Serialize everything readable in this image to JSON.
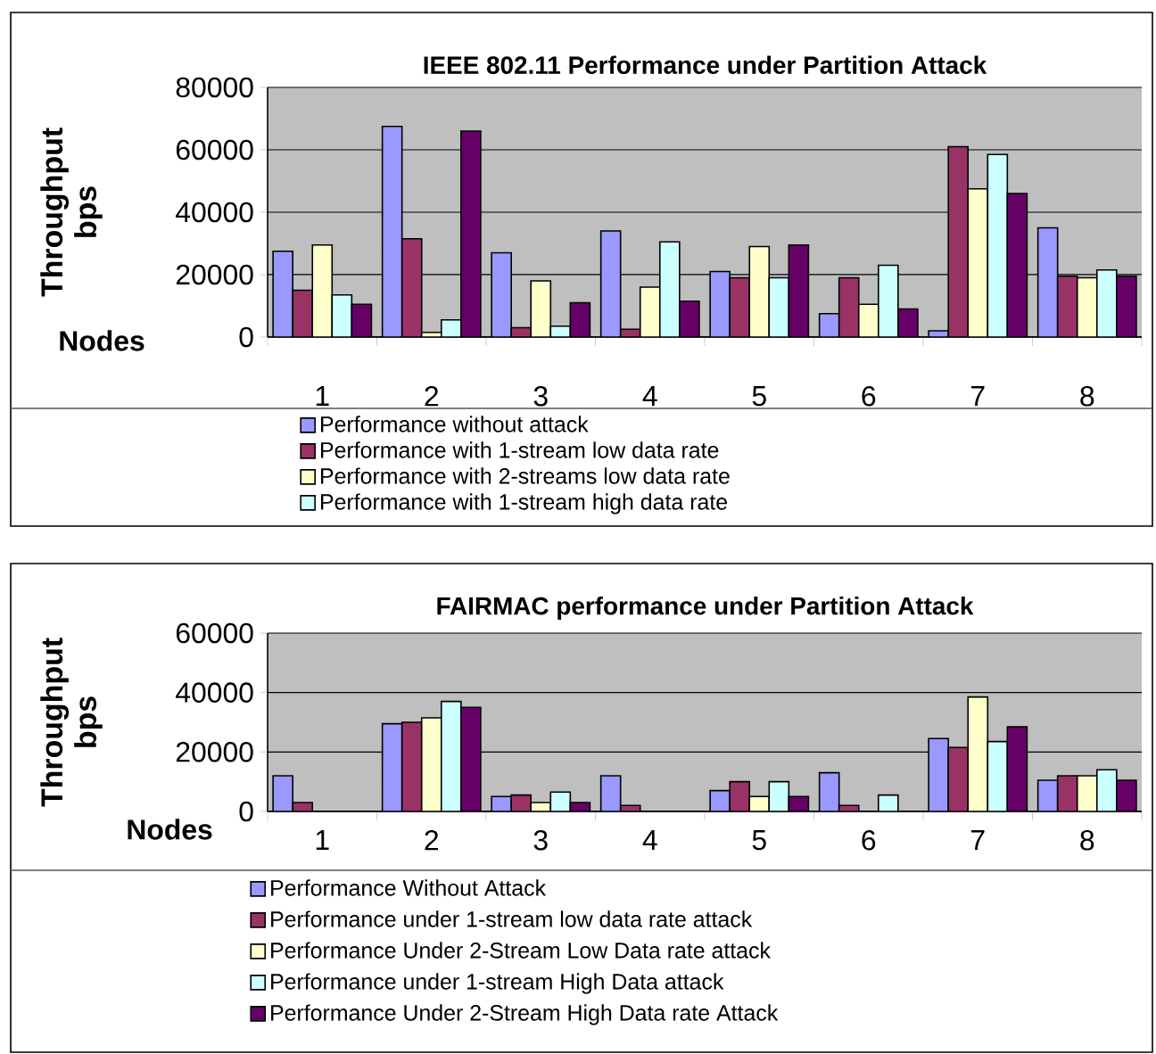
{
  "chart_data": [
    {
      "type": "bar",
      "title": "IEEE 802.11 Performance under Partition Attack",
      "xlabel": "Nodes",
      "ylabel": "Throughput bps",
      "categories": [
        "1",
        "2",
        "3",
        "4",
        "5",
        "6",
        "7",
        "8"
      ],
      "ylim": [
        0,
        80000
      ],
      "yticks": [
        0,
        20000,
        40000,
        60000,
        80000
      ],
      "grid": "y",
      "legend": "bottom",
      "series": [
        {
          "name": "Performance without attack",
          "color": "#9999ff",
          "values": [
            27500,
            67500,
            27000,
            34000,
            21000,
            7500,
            2000,
            35000
          ]
        },
        {
          "name": "Performance with 1-stream low data rate",
          "color": "#993366",
          "values": [
            15000,
            31500,
            3000,
            2500,
            19000,
            19000,
            61000,
            19500
          ]
        },
        {
          "name": "Performance with 2-streams low data rate",
          "color": "#ffffcc",
          "values": [
            29500,
            1500,
            18000,
            16000,
            29000,
            10500,
            47500,
            19000
          ]
        },
        {
          "name": "Performance with 1-stream high data rate",
          "color": "#ccffff",
          "values": [
            13500,
            5500,
            3500,
            30500,
            19000,
            23000,
            58500,
            21500
          ]
        },
        {
          "color": "#660066",
          "values": [
            10500,
            66000,
            11000,
            11500,
            29500,
            9000,
            46000,
            19500
          ]
        }
      ]
    },
    {
      "type": "bar",
      "title": "FAIRMAC performance under Partition Attack",
      "xlabel": "Nodes",
      "ylabel": "Throughput bps",
      "categories": [
        "1",
        "2",
        "3",
        "4",
        "5",
        "6",
        "7",
        "8"
      ],
      "ylim": [
        0,
        60000
      ],
      "yticks": [
        0,
        20000,
        40000,
        60000
      ],
      "grid": "y",
      "legend": "bottom",
      "series": [
        {
          "name": "Performance Without Attack",
          "color": "#9999ff",
          "values": [
            12000,
            29500,
            5000,
            12000,
            7000,
            13000,
            24500,
            10500
          ]
        },
        {
          "name": "Performance under 1-stream low data rate attack",
          "color": "#993366",
          "values": [
            3000,
            30000,
            5500,
            2000,
            10000,
            2000,
            21500,
            12000
          ]
        },
        {
          "name": "Performance Under 2-Stream Low Data rate attack",
          "color": "#ffffcc",
          "values": [
            0,
            31500,
            3000,
            0,
            5000,
            0,
            38500,
            12000
          ]
        },
        {
          "name": "Performance under 1-stream High Data attack",
          "color": "#ccffff",
          "values": [
            0,
            37000,
            6500,
            0,
            10000,
            5500,
            23500,
            14000
          ]
        },
        {
          "name": "Performance Under 2-Stream High Data rate Attack",
          "color": "#660066",
          "values": [
            0,
            35000,
            3000,
            0,
            5000,
            0,
            28500,
            10500
          ]
        }
      ]
    }
  ]
}
